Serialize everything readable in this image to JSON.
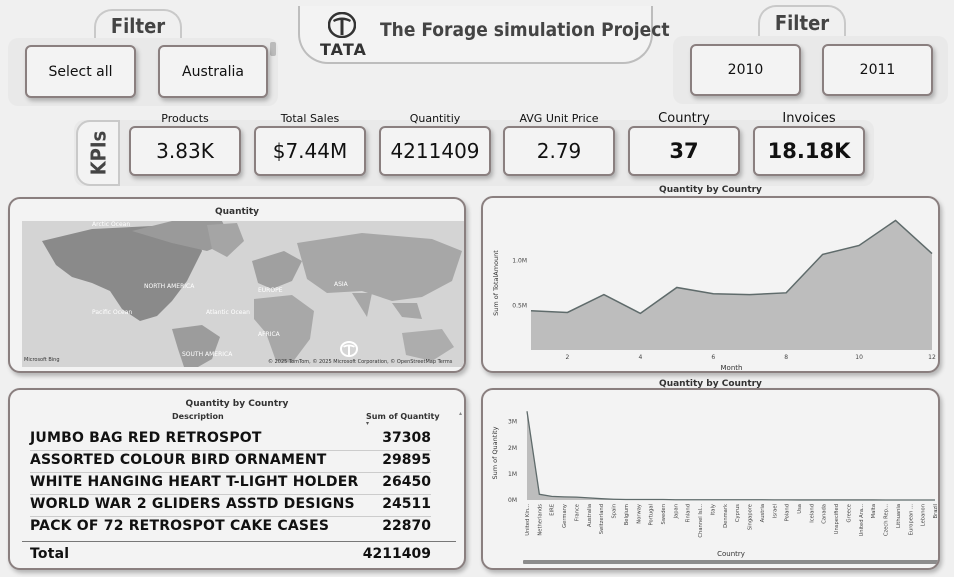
{
  "left_filter": {
    "title": "Filter",
    "buttons": [
      "Select all",
      "Australia"
    ]
  },
  "header": {
    "logo_text": "TATA",
    "title": "The Forage simulation Project"
  },
  "right_filter": {
    "title": "Filter",
    "buttons": [
      "2010",
      "2011"
    ]
  },
  "kpis": {
    "section_label": "KPIs",
    "items": [
      {
        "label": "Products",
        "value": "3.83K"
      },
      {
        "label": "Total Sales",
        "value": "$7.44M"
      },
      {
        "label": "Quantitiy",
        "value": "4211409"
      },
      {
        "label": "AVG Unit Price",
        "value": "2.79"
      },
      {
        "label": "Country",
        "value": "37"
      },
      {
        "label": "Invoices",
        "value": "18.18K"
      }
    ]
  },
  "map": {
    "title": "Quantity",
    "labels": [
      "NORTH AMERICA",
      "EUROPE",
      "ASIA",
      "AFRICA",
      "SOUTH AMERICA",
      "Pacific Ocean",
      "Atlantic Ocean",
      "Arctic Ocean"
    ],
    "attribution": "© 2025 TomTom, © 2025 Microsoft Corporation, © OpenStreetMap  Terms",
    "brand": "Microsoft Bing"
  },
  "line_chart": {
    "title": "Quantity by Country",
    "chart_data": {
      "type": "area",
      "title": "Quantity by Country",
      "xlabel": "Month",
      "ylabel": "Sum of TotalAmount",
      "x": [
        1,
        2,
        3,
        4,
        5,
        6,
        7,
        8,
        9,
        10,
        11,
        12
      ],
      "values": [
        0.44,
        0.42,
        0.62,
        0.41,
        0.7,
        0.63,
        0.62,
        0.64,
        1.07,
        1.17,
        1.45,
        1.08
      ],
      "x_ticks": [
        "2",
        "4",
        "6",
        "8",
        "10",
        "12"
      ],
      "y_ticks": [
        "0.5M",
        "1.0M"
      ],
      "ylim": [
        0,
        1.5
      ],
      "unit": "M"
    }
  },
  "table": {
    "title": "Quantity by Country",
    "col_description": "Description",
    "col_quantity": "Sum of Quantity",
    "rows": [
      {
        "desc": "JUMBO BAG RED RETROSPOT",
        "qty": "37308"
      },
      {
        "desc": "ASSORTED COLOUR BIRD ORNAMENT",
        "qty": "29895"
      },
      {
        "desc": "WHITE HANGING HEART T-LIGHT HOLDER",
        "qty": "26450"
      },
      {
        "desc": "WORLD WAR 2 GLIDERS ASSTD DESIGNS",
        "qty": "24511"
      },
      {
        "desc": "PACK OF 72 RETROSPOT CAKE CASES",
        "qty": "22870"
      }
    ],
    "total_label": "Total",
    "total_value": "4211409"
  },
  "country_chart": {
    "title": "Quantity by Country",
    "chart_data": {
      "type": "area",
      "title": "Quantity by Country",
      "xlabel": "Country",
      "ylabel": "Sum of Quantity",
      "categories": [
        "United Kin...",
        "Netherlands",
        "EIRE",
        "Germany",
        "France",
        "Australia",
        "Switzerland",
        "Spain",
        "Belgium",
        "Norway",
        "Portugal",
        "Sweden",
        "Japan",
        "Finland",
        "Channel Isl...",
        "Italy",
        "Denmark",
        "Cyprus",
        "Singapore",
        "Austria",
        "Israel",
        "Poland",
        "Usa",
        "Iceland",
        "Canada",
        "Unspecified",
        "Greece",
        "United Ara...",
        "Malta",
        "Czech Rep...",
        "Lithuania",
        "European ...",
        "Lebanon",
        "Brazil"
      ],
      "values": [
        3.4,
        0.22,
        0.14,
        0.12,
        0.11,
        0.08,
        0.05,
        0.03,
        0.02,
        0.02,
        0.02,
        0.02,
        0.01,
        0.01,
        0.01,
        0.01,
        0.01,
        0.01,
        0.01,
        0.01,
        0.005,
        0.004,
        0.003,
        0.003,
        0.003,
        0.003,
        0.002,
        0.002,
        0.002,
        0.001,
        0.001,
        0.001,
        0.0005,
        0.0004
      ],
      "y_ticks": [
        "0M",
        "1M",
        "2M",
        "3M"
      ],
      "ylim": [
        0,
        3.6
      ],
      "unit": "M"
    }
  }
}
